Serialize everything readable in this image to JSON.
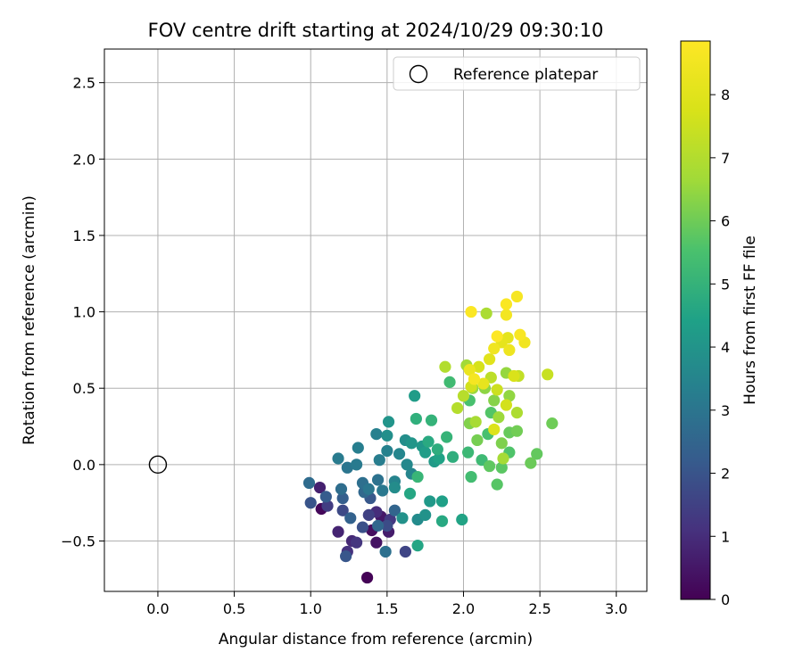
{
  "chart_data": {
    "type": "scatter",
    "title": "FOV centre drift starting at 2024/10/29 09:30:10",
    "xlabel": "Angular distance from reference (arcmin)",
    "ylabel": "Rotation from reference (arcmin)",
    "xlim": [
      -0.35,
      3.2
    ],
    "ylim": [
      -0.83,
      2.72
    ],
    "xticks": [
      0.0,
      0.5,
      1.0,
      1.5,
      2.0,
      2.5,
      3.0
    ],
    "xtick_labels": [
      "0.0",
      "0.5",
      "1.0",
      "1.5",
      "2.0",
      "2.5",
      "3.0"
    ],
    "yticks": [
      -0.5,
      0.0,
      0.5,
      1.0,
      1.5,
      2.0,
      2.5
    ],
    "ytick_labels": [
      "−0.5",
      "0.0",
      "0.5",
      "1.0",
      "1.5",
      "2.0",
      "2.5"
    ],
    "grid": true,
    "legend": {
      "position": "top-right",
      "entries": [
        {
          "label": "Reference platepar",
          "marker": "open-circle"
        }
      ]
    },
    "reference_point": {
      "x": 0.0,
      "y": 0.0
    },
    "colorbar": {
      "label": "Hours from first FF file",
      "colormap": "viridis",
      "range": [
        0,
        8.85
      ],
      "ticks": [
        0,
        1,
        2,
        3,
        4,
        5,
        6,
        7,
        8
      ],
      "tick_labels": [
        "0",
        "1",
        "2",
        "3",
        "4",
        "5",
        "6",
        "7",
        "8"
      ]
    },
    "points": [
      [
        1.37,
        -0.74,
        0.05
      ],
      [
        1.07,
        -0.29,
        0.15
      ],
      [
        1.4,
        -0.43,
        0.3
      ],
      [
        1.43,
        -0.51,
        0.4
      ],
      [
        1.46,
        -0.34,
        0.5
      ],
      [
        1.51,
        -0.44,
        0.6
      ],
      [
        1.06,
        -0.15,
        0.7
      ],
      [
        1.18,
        -0.44,
        0.8
      ],
      [
        1.27,
        -0.5,
        0.9
      ],
      [
        1.43,
        -0.31,
        1.0
      ],
      [
        1.24,
        -0.57,
        1.1
      ],
      [
        1.3,
        -0.51,
        1.2
      ],
      [
        1.52,
        -0.36,
        1.3
      ],
      [
        1.11,
        -0.27,
        1.4
      ],
      [
        1.38,
        -0.33,
        1.5
      ],
      [
        1.62,
        -0.57,
        1.6
      ],
      [
        1.21,
        -0.3,
        1.7
      ],
      [
        1.5,
        -0.4,
        1.8
      ],
      [
        1.34,
        -0.41,
        1.9
      ],
      [
        1.0,
        -0.25,
        2.0
      ],
      [
        1.23,
        -0.6,
        2.05
      ],
      [
        1.39,
        -0.22,
        2.1
      ],
      [
        1.1,
        -0.21,
        2.2
      ],
      [
        1.21,
        -0.22,
        2.3
      ],
      [
        1.26,
        -0.35,
        2.4
      ],
      [
        1.55,
        -0.3,
        2.5
      ],
      [
        1.44,
        -0.4,
        2.55
      ],
      [
        1.35,
        -0.18,
        2.6
      ],
      [
        0.99,
        -0.12,
        2.7
      ],
      [
        1.2,
        -0.16,
        2.75
      ],
      [
        1.34,
        -0.12,
        2.8
      ],
      [
        1.49,
        -0.57,
        2.85
      ],
      [
        1.44,
        -0.1,
        2.9
      ],
      [
        1.24,
        -0.02,
        3.0
      ],
      [
        1.38,
        -0.16,
        3.05
      ],
      [
        1.47,
        -0.17,
        3.1
      ],
      [
        1.3,
        0.0,
        3.15
      ],
      [
        1.18,
        0.04,
        3.2
      ],
      [
        1.45,
        0.03,
        3.25
      ],
      [
        1.31,
        0.11,
        3.3
      ],
      [
        1.43,
        0.2,
        3.35
      ],
      [
        1.5,
        0.09,
        3.4
      ],
      [
        1.55,
        -0.11,
        3.45
      ],
      [
        1.66,
        -0.06,
        3.5
      ],
      [
        1.58,
        0.07,
        3.55
      ],
      [
        1.63,
        0.0,
        3.6
      ],
      [
        1.7,
        -0.36,
        3.7
      ],
      [
        1.55,
        -0.15,
        3.75
      ],
      [
        1.62,
        0.16,
        3.8
      ],
      [
        1.5,
        0.19,
        3.85
      ],
      [
        1.6,
        -0.35,
        3.9
      ],
      [
        1.75,
        -0.33,
        3.95
      ],
      [
        1.51,
        0.28,
        4.0
      ],
      [
        1.66,
        0.14,
        4.05
      ],
      [
        1.73,
        0.12,
        4.1
      ],
      [
        1.78,
        -0.24,
        4.15
      ],
      [
        1.81,
        0.02,
        4.2
      ],
      [
        1.68,
        0.45,
        4.25
      ],
      [
        1.75,
        0.08,
        4.3
      ],
      [
        1.86,
        -0.24,
        4.4
      ],
      [
        1.84,
        0.04,
        4.45
      ],
      [
        1.99,
        -0.36,
        4.5
      ],
      [
        1.7,
        -0.53,
        4.55
      ],
      [
        1.65,
        -0.19,
        4.6
      ],
      [
        1.86,
        -0.37,
        4.65
      ],
      [
        1.77,
        0.15,
        4.7
      ],
      [
        1.83,
        0.1,
        4.8
      ],
      [
        1.93,
        0.05,
        4.85
      ],
      [
        1.69,
        0.3,
        4.9
      ],
      [
        1.79,
        0.29,
        5.0
      ],
      [
        1.89,
        0.18,
        5.05
      ],
      [
        1.7,
        -0.08,
        5.1
      ],
      [
        2.03,
        0.08,
        5.2
      ],
      [
        2.12,
        0.03,
        5.25
      ],
      [
        1.91,
        0.54,
        5.3
      ],
      [
        2.05,
        -0.08,
        5.35
      ],
      [
        2.16,
        0.2,
        5.45
      ],
      [
        2.04,
        0.42,
        5.5
      ],
      [
        2.3,
        0.08,
        5.6
      ],
      [
        2.18,
        0.34,
        5.65
      ],
      [
        2.22,
        -0.13,
        5.7
      ],
      [
        2.25,
        -0.02,
        5.75
      ],
      [
        2.17,
        -0.01,
        5.8
      ],
      [
        2.48,
        0.07,
        5.85
      ],
      [
        2.3,
        0.21,
        5.9
      ],
      [
        2.44,
        0.01,
        5.95
      ],
      [
        2.58,
        0.27,
        6.0
      ],
      [
        2.35,
        0.22,
        6.05
      ],
      [
        2.09,
        0.16,
        6.1
      ],
      [
        2.25,
        0.14,
        6.2
      ],
      [
        2.04,
        0.27,
        6.25
      ],
      [
        2.2,
        0.42,
        6.3
      ],
      [
        2.14,
        0.5,
        6.4
      ],
      [
        2.3,
        0.45,
        6.45
      ],
      [
        2.28,
        0.6,
        6.5
      ],
      [
        2.06,
        0.5,
        6.55
      ],
      [
        2.23,
        0.31,
        6.6
      ],
      [
        2.02,
        0.65,
        6.7
      ],
      [
        2.26,
        0.04,
        6.75
      ],
      [
        2.08,
        0.28,
        6.8
      ],
      [
        2.15,
        0.99,
        6.85
      ],
      [
        2.35,
        0.34,
        6.9
      ],
      [
        1.88,
        0.64,
        7.0
      ],
      [
        1.96,
        0.37,
        7.05
      ],
      [
        2.0,
        0.45,
        7.1
      ],
      [
        2.18,
        0.57,
        7.2
      ],
      [
        2.36,
        0.58,
        7.3
      ],
      [
        2.55,
        0.59,
        7.4
      ],
      [
        2.22,
        0.49,
        7.5
      ],
      [
        2.05,
        0.51,
        7.6
      ],
      [
        2.28,
        0.39,
        7.65
      ],
      [
        2.1,
        0.64,
        7.7
      ],
      [
        2.33,
        0.58,
        7.8
      ],
      [
        2.2,
        0.23,
        7.9
      ],
      [
        2.17,
        0.69,
        8.0
      ],
      [
        2.29,
        0.83,
        8.1
      ],
      [
        2.25,
        0.8,
        8.15
      ],
      [
        2.13,
        0.53,
        8.2
      ],
      [
        2.04,
        0.62,
        8.3
      ],
      [
        2.3,
        0.75,
        8.4
      ],
      [
        2.2,
        0.76,
        8.45
      ],
      [
        2.4,
        0.8,
        8.5
      ],
      [
        2.28,
        0.98,
        8.55
      ],
      [
        2.07,
        0.56,
        8.6
      ],
      [
        2.35,
        1.1,
        8.65
      ],
      [
        2.37,
        0.85,
        8.7
      ],
      [
        2.28,
        1.05,
        8.75
      ],
      [
        2.05,
        1.0,
        8.8
      ],
      [
        2.22,
        0.84,
        8.85
      ]
    ]
  }
}
